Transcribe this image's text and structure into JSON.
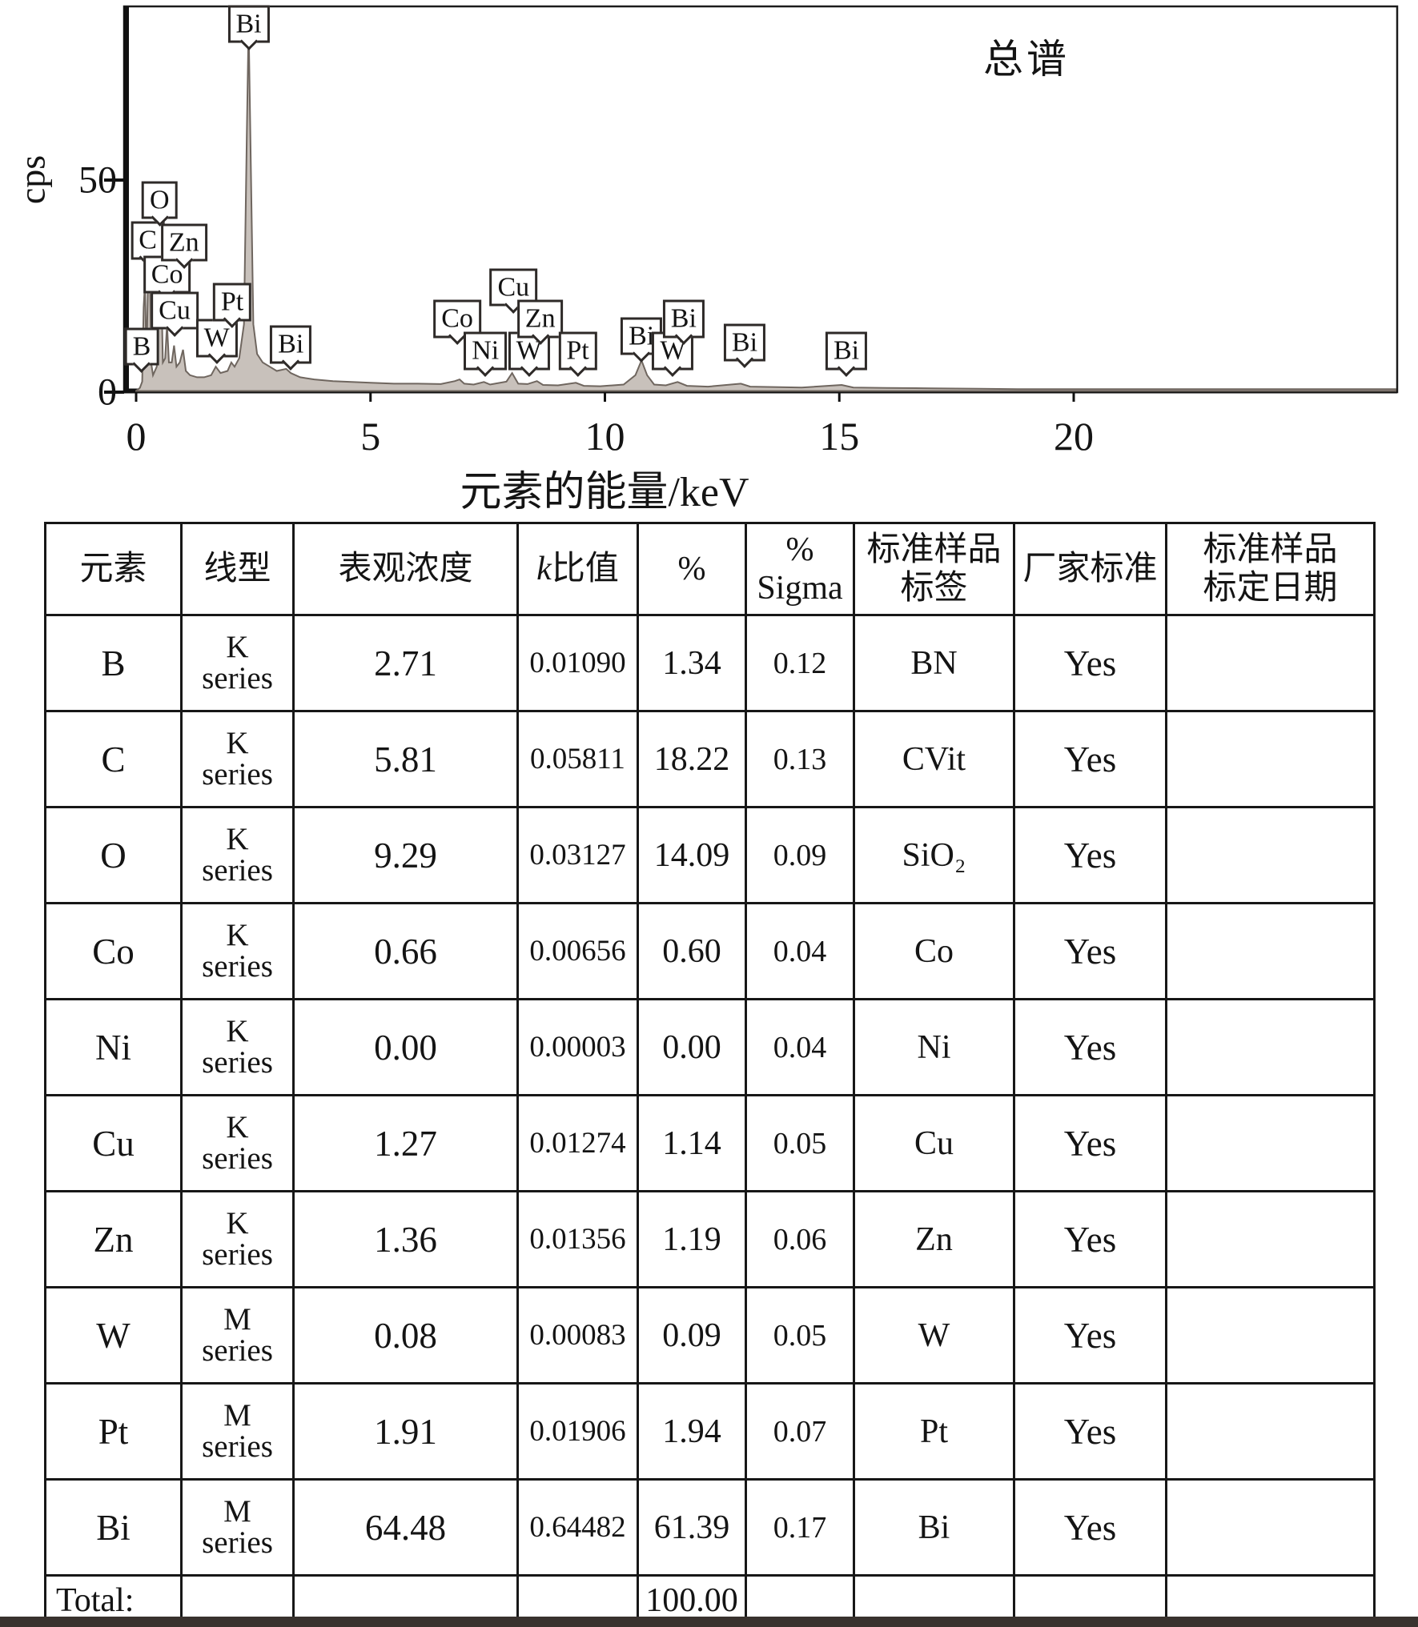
{
  "chart_data": {
    "type": "area",
    "title": "总谱",
    "xlabel": "元素的能量/keV",
    "ylabel": "cps",
    "xlim": [
      0,
      20
    ],
    "ylim": [
      0,
      91
    ],
    "x_ticks": [
      0,
      5,
      10,
      15,
      20
    ],
    "y_ticks": [
      0,
      50
    ],
    "grid": false,
    "legend_position": "top-right",
    "spectrum": [
      [
        0,
        0.3
      ],
      [
        0.08,
        1
      ],
      [
        0.13,
        2.5
      ],
      [
        0.16,
        20
      ],
      [
        0.19,
        26
      ],
      [
        0.22,
        6
      ],
      [
        0.26,
        30
      ],
      [
        0.29,
        34
      ],
      [
        0.32,
        7
      ],
      [
        0.36,
        4
      ],
      [
        0.44,
        6
      ],
      [
        0.49,
        36
      ],
      [
        0.53,
        30
      ],
      [
        0.57,
        7
      ],
      [
        0.62,
        8
      ],
      [
        0.66,
        16
      ],
      [
        0.7,
        7
      ],
      [
        0.76,
        7
      ],
      [
        0.81,
        11
      ],
      [
        0.86,
        6
      ],
      [
        0.93,
        7
      ],
      [
        1.0,
        10
      ],
      [
        1.06,
        5
      ],
      [
        1.15,
        4
      ],
      [
        1.3,
        3.5
      ],
      [
        1.45,
        3.5
      ],
      [
        1.6,
        4
      ],
      [
        1.7,
        6
      ],
      [
        1.8,
        4.5
      ],
      [
        1.95,
        5
      ],
      [
        2.03,
        7
      ],
      [
        2.1,
        6
      ],
      [
        2.2,
        8
      ],
      [
        2.3,
        16
      ],
      [
        2.36,
        60
      ],
      [
        2.4,
        87
      ],
      [
        2.44,
        58
      ],
      [
        2.5,
        16
      ],
      [
        2.58,
        9
      ],
      [
        2.7,
        7
      ],
      [
        2.85,
        6
      ],
      [
        3.0,
        5
      ],
      [
        3.2,
        5.5
      ],
      [
        3.3,
        4.5
      ],
      [
        3.5,
        3.5
      ],
      [
        3.8,
        3
      ],
      [
        4.2,
        2.6
      ],
      [
        4.6,
        2.4
      ],
      [
        5.0,
        2.2
      ],
      [
        5.5,
        2
      ],
      [
        6.0,
        2
      ],
      [
        6.5,
        1.9
      ],
      [
        6.8,
        2.6
      ],
      [
        6.9,
        3
      ],
      [
        7.0,
        2
      ],
      [
        7.2,
        1.8
      ],
      [
        7.42,
        2.4
      ],
      [
        7.55,
        1.8
      ],
      [
        7.9,
        2.5
      ],
      [
        8.02,
        4.5
      ],
      [
        8.15,
        2
      ],
      [
        8.35,
        1.9
      ],
      [
        8.55,
        2.6
      ],
      [
        8.68,
        1.7
      ],
      [
        9.0,
        1.6
      ],
      [
        9.38,
        2.2
      ],
      [
        9.55,
        1.5
      ],
      [
        9.9,
        1.4
      ],
      [
        10.4,
        1.8
      ],
      [
        10.65,
        4
      ],
      [
        10.78,
        7.5
      ],
      [
        10.9,
        4
      ],
      [
        11.05,
        1.8
      ],
      [
        11.3,
        1.6
      ],
      [
        11.55,
        2.4
      ],
      [
        11.75,
        1.5
      ],
      [
        12.2,
        1.3
      ],
      [
        12.9,
        2
      ],
      [
        13.1,
        1.3
      ],
      [
        13.6,
        1.2
      ],
      [
        14.2,
        1.1
      ],
      [
        15.05,
        1.7
      ],
      [
        15.3,
        1.1
      ],
      [
        16.0,
        1
      ],
      [
        17.0,
        0.9
      ],
      [
        18.0,
        0.8
      ],
      [
        19.0,
        0.7
      ],
      [
        20.0,
        0.7
      ]
    ],
    "peak_labels": [
      {
        "text": "B",
        "x": 0.12,
        "y": 4
      },
      {
        "text": "C",
        "x": 0.25,
        "y": 29
      },
      {
        "text": "O",
        "x": 0.5,
        "y": 38.5
      },
      {
        "text": "Co",
        "x": 0.66,
        "y": 21
      },
      {
        "text": "Cu",
        "x": 0.82,
        "y": 12.5
      },
      {
        "text": "Zn",
        "x": 1.02,
        "y": 28.5
      },
      {
        "text": "W",
        "x": 1.72,
        "y": 6
      },
      {
        "text": "Pt",
        "x": 2.05,
        "y": 14.5
      },
      {
        "text": "Bi",
        "x": 2.4,
        "y": 80
      },
      {
        "text": "Bi",
        "x": 3.3,
        "y": 4.5
      },
      {
        "text": "Co",
        "x": 6.85,
        "y": 10.5
      },
      {
        "text": "Ni",
        "x": 7.45,
        "y": 3
      },
      {
        "text": "Cu",
        "x": 8.05,
        "y": 18
      },
      {
        "text": "W",
        "x": 8.38,
        "y": 3
      },
      {
        "text": "Zn",
        "x": 8.62,
        "y": 10.5
      },
      {
        "text": "Pt",
        "x": 9.42,
        "y": 3
      },
      {
        "text": "Bi",
        "x": 10.78,
        "y": 6.5
      },
      {
        "text": "W",
        "x": 11.45,
        "y": 3
      },
      {
        "text": "Bi",
        "x": 11.68,
        "y": 10.5
      },
      {
        "text": "Bi",
        "x": 12.98,
        "y": 5
      },
      {
        "text": "Bi",
        "x": 15.15,
        "y": 3
      }
    ]
  },
  "table": {
    "headers": {
      "element": "元素",
      "line": "线型",
      "apparent": "表观浓度",
      "kratio_k": "k",
      "kratio_rest": "比值",
      "pct": "%",
      "sigma": "%\nSigma",
      "label": "标准样品\n标签",
      "standard": "厂家标准",
      "date": "标准样品\n标定日期"
    },
    "rows": [
      {
        "element": "B",
        "line": "K\nseries",
        "apparent": "2.71",
        "kratio": "0.01090",
        "pct": "1.34",
        "sigma": "0.12",
        "label": "BN",
        "standard": "Yes",
        "date": ""
      },
      {
        "element": "C",
        "line": "K\nseries",
        "apparent": "5.81",
        "kratio": "0.05811",
        "pct": "18.22",
        "sigma": "0.13",
        "label": "CVit",
        "standard": "Yes",
        "date": ""
      },
      {
        "element": "O",
        "line": "K\nseries",
        "apparent": "9.29",
        "kratio": "0.03127",
        "pct": "14.09",
        "sigma": "0.09",
        "label": "SiO₂",
        "standard": "Yes",
        "date": ""
      },
      {
        "element": "Co",
        "line": "K\nseries",
        "apparent": "0.66",
        "kratio": "0.00656",
        "pct": "0.60",
        "sigma": "0.04",
        "label": "Co",
        "standard": "Yes",
        "date": ""
      },
      {
        "element": "Ni",
        "line": "K\nseries",
        "apparent": "0.00",
        "kratio": "0.00003",
        "pct": "0.00",
        "sigma": "0.04",
        "label": "Ni",
        "standard": "Yes",
        "date": ""
      },
      {
        "element": "Cu",
        "line": "K\nseries",
        "apparent": "1.27",
        "kratio": "0.01274",
        "pct": "1.14",
        "sigma": "0.05",
        "label": "Cu",
        "standard": "Yes",
        "date": ""
      },
      {
        "element": "Zn",
        "line": "K\nseries",
        "apparent": "1.36",
        "kratio": "0.01356",
        "pct": "1.19",
        "sigma": "0.06",
        "label": "Zn",
        "standard": "Yes",
        "date": ""
      },
      {
        "element": "W",
        "line": "M\nseries",
        "apparent": "0.08",
        "kratio": "0.00083",
        "pct": "0.09",
        "sigma": "0.05",
        "label": "W",
        "standard": "Yes",
        "date": ""
      },
      {
        "element": "Pt",
        "line": "M\nseries",
        "apparent": "1.91",
        "kratio": "0.01906",
        "pct": "1.94",
        "sigma": "0.07",
        "label": "Pt",
        "standard": "Yes",
        "date": ""
      },
      {
        "element": "Bi",
        "line": "M\nseries",
        "apparent": "64.48",
        "kratio": "0.64482",
        "pct": "61.39",
        "sigma": "0.17",
        "label": "Bi",
        "standard": "Yes",
        "date": ""
      }
    ],
    "total_label": "Total:",
    "total_pct": "100.00"
  }
}
